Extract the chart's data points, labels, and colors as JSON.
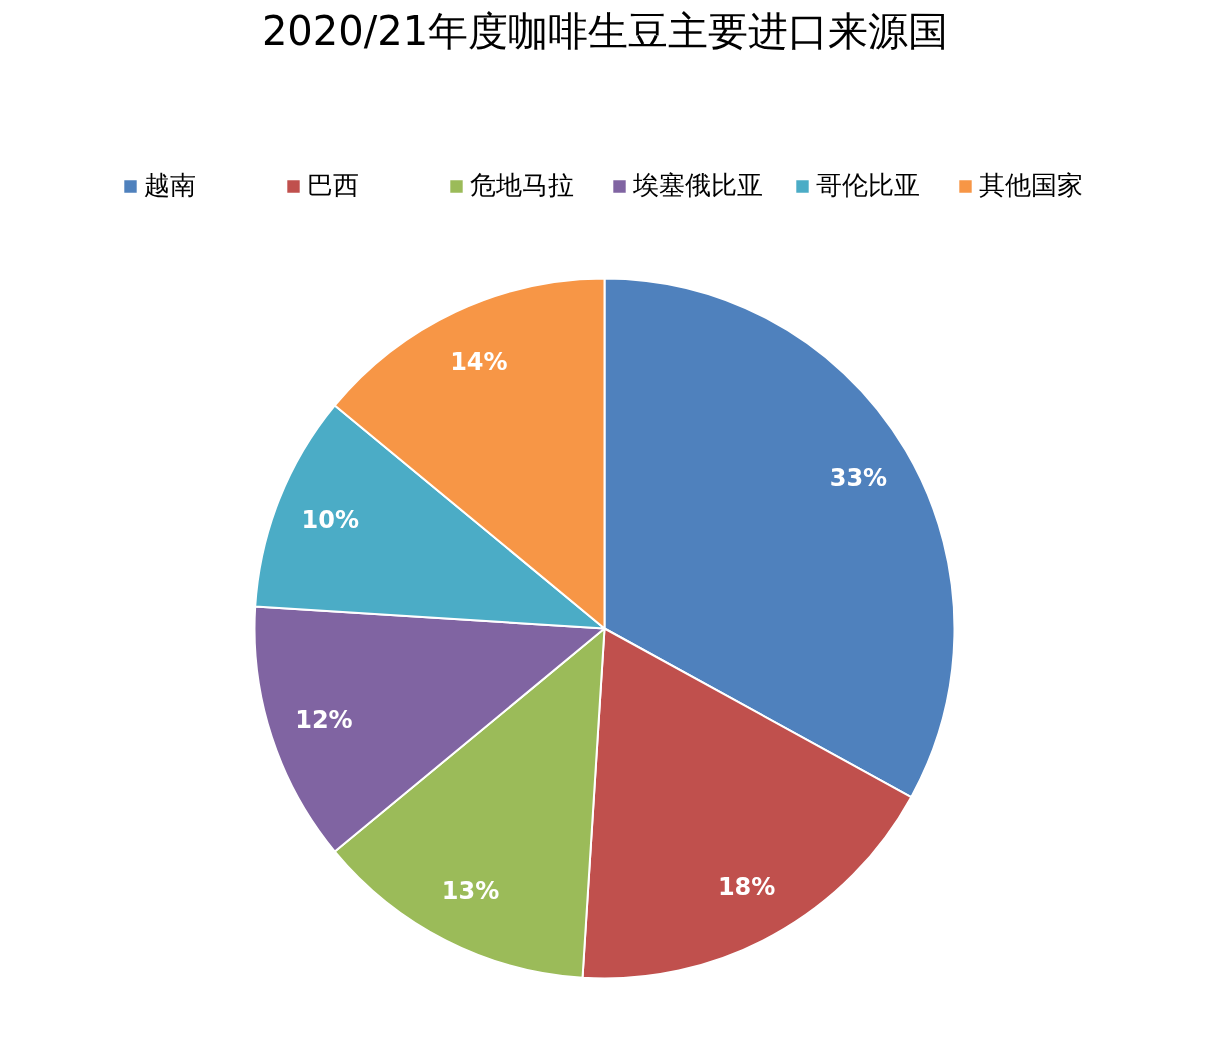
{
  "chart_data": {
    "type": "pie",
    "title": "2020/21年度咖啡生豆主要进口来源国",
    "categories": [
      "越南",
      "巴西",
      "危地马拉",
      "埃塞俄比亚",
      "哥伦比亚",
      "其他国家"
    ],
    "values": [
      33,
      18,
      13,
      12,
      10,
      14
    ],
    "colors": [
      "#4f81bd",
      "#c0504d",
      "#9bbb59",
      "#8064a2",
      "#4bacc6",
      "#f79646"
    ],
    "value_labels": [
      "33%",
      "18%",
      "13%",
      "12%",
      "10%",
      "14%"
    ],
    "legend": "top"
  }
}
